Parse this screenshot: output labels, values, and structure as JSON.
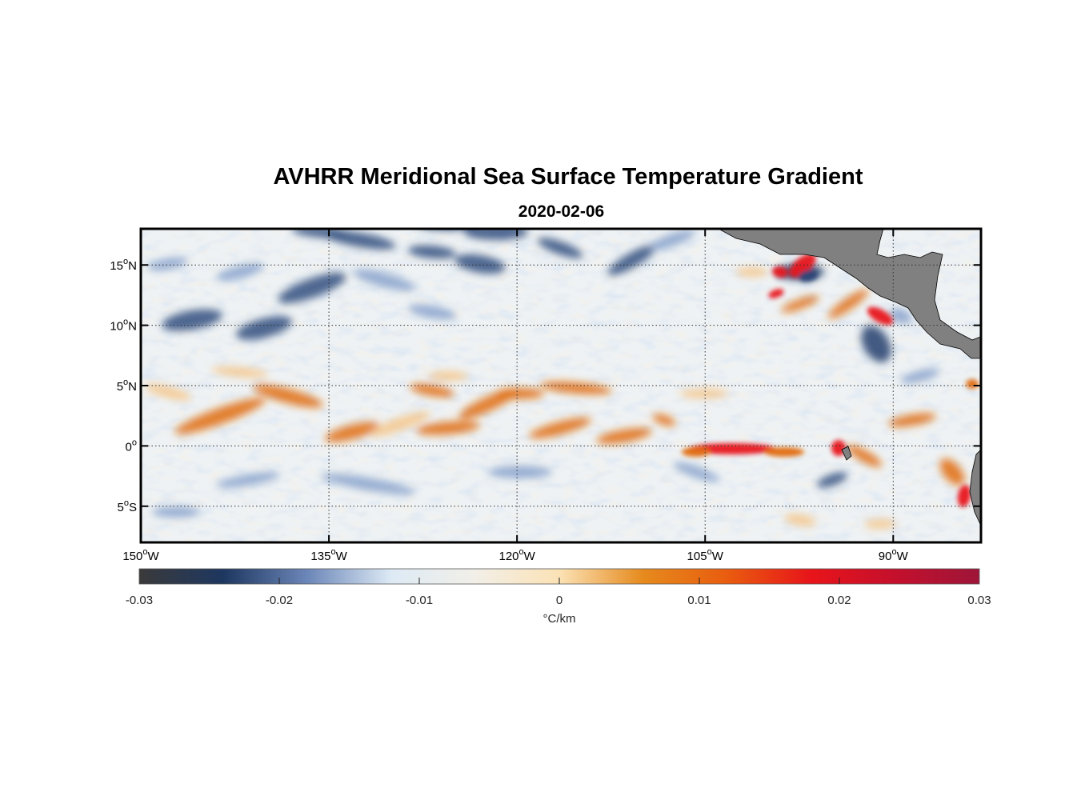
{
  "title": "AVHRR Meridional Sea Surface Temperature Gradient",
  "subtitle": "2020-02-06",
  "map": {
    "lon_range": [
      -150,
      -83
    ],
    "lat_range": [
      -8,
      18
    ],
    "lon_ticks": [
      {
        "deg": "150",
        "hemi": "W"
      },
      {
        "deg": "135",
        "hemi": "W"
      },
      {
        "deg": "120",
        "hemi": "W"
      },
      {
        "deg": "105",
        "hemi": "W"
      },
      {
        "deg": "90",
        "hemi": "W"
      }
    ],
    "lat_ticks": [
      {
        "deg": "15",
        "hemi": "N"
      },
      {
        "deg": "10",
        "hemi": "N"
      },
      {
        "deg": "5",
        "hemi": "N"
      },
      {
        "deg": "0",
        "hemi": ""
      },
      {
        "deg": "5",
        "hemi": "S"
      }
    ],
    "grid": "dotted",
    "land_color": "#808080"
  },
  "colorbar": {
    "range": [
      -0.03,
      0.03
    ],
    "ticks": [
      "-0.03",
      "-0.02",
      "-0.01",
      "0",
      "0.01",
      "0.02",
      "0.03"
    ],
    "label": "°C/km",
    "colors": [
      "#3a3a3a",
      "#1e3760",
      "#6b86b8",
      "#ddeaf5",
      "#f2efe8",
      "#fbe2b5",
      "#e68a1d",
      "#e95c0f",
      "#e8141a",
      "#c4102d",
      "#9e1538"
    ]
  }
}
